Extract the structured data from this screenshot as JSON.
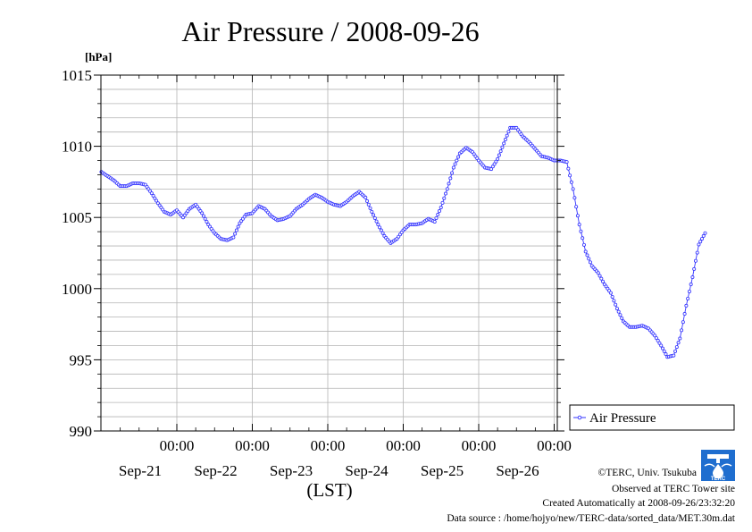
{
  "chart_data": {
    "type": "line",
    "title": "Air Pressure / 2008-09-26",
    "ylabel": "[hPa]",
    "xlabel": "(LST)",
    "ylim": [
      990,
      1015
    ],
    "yticks": [
      990,
      995,
      1000,
      1005,
      1010,
      1015
    ],
    "grid": true,
    "legend_position": "right",
    "x_tick_labels": [
      {
        "time": "00:00",
        "date": "Sep-21"
      },
      {
        "time": "00:00",
        "date": "Sep-22"
      },
      {
        "time": "00:00",
        "date": "Sep-23"
      },
      {
        "time": "00:00",
        "date": "Sep-24"
      },
      {
        "time": "00:00",
        "date": "Sep-25"
      },
      {
        "time": "00:00",
        "date": "Sep-26"
      }
    ],
    "series": [
      {
        "name": "Air Pressure",
        "color": "#3333ff",
        "points": [
          [
            "2008-09-20 00:00",
            1008.2
          ],
          [
            "2008-09-20 02:00",
            1007.9
          ],
          [
            "2008-09-20 04:00",
            1007.6
          ],
          [
            "2008-09-20 06:00",
            1007.2
          ],
          [
            "2008-09-20 08:00",
            1007.2
          ],
          [
            "2008-09-20 10:00",
            1007.4
          ],
          [
            "2008-09-20 12:00",
            1007.4
          ],
          [
            "2008-09-20 14:00",
            1007.3
          ],
          [
            "2008-09-20 16:00",
            1006.7
          ],
          [
            "2008-09-20 18:00",
            1006.0
          ],
          [
            "2008-09-20 20:00",
            1005.4
          ],
          [
            "2008-09-20 22:00",
            1005.2
          ],
          [
            "2008-09-21 00:00",
            1005.5
          ],
          [
            "2008-09-21 02:00",
            1005.0
          ],
          [
            "2008-09-21 04:00",
            1005.6
          ],
          [
            "2008-09-21 06:00",
            1005.9
          ],
          [
            "2008-09-21 08:00",
            1005.3
          ],
          [
            "2008-09-21 10:00",
            1004.5
          ],
          [
            "2008-09-21 12:00",
            1003.9
          ],
          [
            "2008-09-21 14:00",
            1003.5
          ],
          [
            "2008-09-21 16:00",
            1003.4
          ],
          [
            "2008-09-21 18:00",
            1003.6
          ],
          [
            "2008-09-21 20:00",
            1004.6
          ],
          [
            "2008-09-21 22:00",
            1005.2
          ],
          [
            "2008-09-22 00:00",
            1005.3
          ],
          [
            "2008-09-22 02:00",
            1005.8
          ],
          [
            "2008-09-22 04:00",
            1005.6
          ],
          [
            "2008-09-22 06:00",
            1005.1
          ],
          [
            "2008-09-22 08:00",
            1004.8
          ],
          [
            "2008-09-22 10:00",
            1004.9
          ],
          [
            "2008-09-22 12:00",
            1005.1
          ],
          [
            "2008-09-22 14:00",
            1005.6
          ],
          [
            "2008-09-22 16:00",
            1005.9
          ],
          [
            "2008-09-22 18:00",
            1006.3
          ],
          [
            "2008-09-22 20:00",
            1006.6
          ],
          [
            "2008-09-22 22:00",
            1006.4
          ],
          [
            "2008-09-23 00:00",
            1006.1
          ],
          [
            "2008-09-23 02:00",
            1005.9
          ],
          [
            "2008-09-23 04:00",
            1005.8
          ],
          [
            "2008-09-23 06:00",
            1006.1
          ],
          [
            "2008-09-23 08:00",
            1006.5
          ],
          [
            "2008-09-23 10:00",
            1006.8
          ],
          [
            "2008-09-23 12:00",
            1006.4
          ],
          [
            "2008-09-23 14:00",
            1005.4
          ],
          [
            "2008-09-23 16:00",
            1004.5
          ],
          [
            "2008-09-23 18:00",
            1003.7
          ],
          [
            "2008-09-23 20:00",
            1003.2
          ],
          [
            "2008-09-23 22:00",
            1003.5
          ],
          [
            "2008-09-24 00:00",
            1004.1
          ],
          [
            "2008-09-24 02:00",
            1004.5
          ],
          [
            "2008-09-24 04:00",
            1004.5
          ],
          [
            "2008-09-24 06:00",
            1004.6
          ],
          [
            "2008-09-24 08:00",
            1004.9
          ],
          [
            "2008-09-24 10:00",
            1004.7
          ],
          [
            "2008-09-24 12:00",
            1005.7
          ],
          [
            "2008-09-24 14:00",
            1007.0
          ],
          [
            "2008-09-24 16:00",
            1008.5
          ],
          [
            "2008-09-24 18:00",
            1009.5
          ],
          [
            "2008-09-24 20:00",
            1009.9
          ],
          [
            "2008-09-24 22:00",
            1009.6
          ],
          [
            "2008-09-25 00:00",
            1009.0
          ],
          [
            "2008-09-25 02:00",
            1008.5
          ],
          [
            "2008-09-25 04:00",
            1008.4
          ],
          [
            "2008-09-25 06:00",
            1009.1
          ],
          [
            "2008-09-25 08:00",
            1010.2
          ],
          [
            "2008-09-25 10:00",
            1011.3
          ],
          [
            "2008-09-25 12:00",
            1011.3
          ],
          [
            "2008-09-25 14:00",
            1010.7
          ],
          [
            "2008-09-25 16:00",
            1010.3
          ],
          [
            "2008-09-25 18:00",
            1009.8
          ],
          [
            "2008-09-25 20:00",
            1009.3
          ],
          [
            "2008-09-25 22:00",
            1009.2
          ],
          [
            "2008-09-26 00:00",
            1009.0
          ],
          [
            "2008-09-26 02:00",
            1009.0
          ],
          [
            "2008-09-26 04:00",
            1008.9
          ],
          [
            "2008-09-26 06:00",
            1007.0
          ],
          [
            "2008-09-26 08:00",
            1004.5
          ],
          [
            "2008-09-26 10:00",
            1002.6
          ],
          [
            "2008-09-26 12:00",
            1001.6
          ],
          [
            "2008-09-26 14:00",
            1001.1
          ],
          [
            "2008-09-26 16:00",
            1000.3
          ],
          [
            "2008-09-26 18:00",
            999.7
          ],
          [
            "2008-09-26 20:00",
            998.6
          ],
          [
            "2008-09-26 22:00",
            997.7
          ],
          [
            "2008-09-27 00:00",
            997.3
          ],
          [
            "2008-09-27 02:00",
            997.3
          ],
          [
            "2008-09-27 04:00",
            997.4
          ],
          [
            "2008-09-27 06:00",
            997.2
          ],
          [
            "2008-09-27 08:00",
            996.7
          ],
          [
            "2008-09-27 10:00",
            996.0
          ],
          [
            "2008-09-27 12:00",
            995.2
          ],
          [
            "2008-09-27 14:00",
            995.3
          ],
          [
            "2008-09-27 16:00",
            996.5
          ],
          [
            "2008-09-27 18:00",
            998.8
          ],
          [
            "2008-09-27 20:00",
            1000.8
          ],
          [
            "2008-09-27 22:00",
            1003.1
          ],
          [
            "2008-09-28 00:00",
            1003.9
          ]
        ]
      }
    ]
  },
  "logo": {
    "text": "TERC"
  },
  "credits": {
    "copyright": "©TERC, Univ. Tsukuba",
    "observed": "Observed at TERC Tower site",
    "created": "Created Automatically at 2008-09-26/23:32:20",
    "source": "Data source : /home/hojyo/new/TERC-data/sorted_data/MET.30m.dat"
  }
}
